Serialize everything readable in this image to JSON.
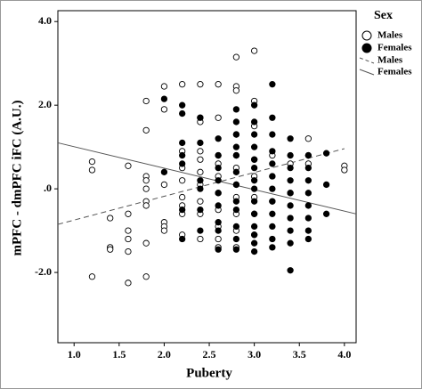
{
  "chart_data": {
    "type": "scatter",
    "x_label": "Puberty",
    "y_label": "mPFC - dmPFC iFC (A.U.)",
    "legend_title": "Sex",
    "legend": "right",
    "xlim": [
      0.82,
      4.13
    ],
    "ylim": [
      -3.68,
      4.26
    ],
    "xticks": [
      {
        "value": 1,
        "label": "1.0"
      },
      {
        "value": 1.5,
        "label": "1.5"
      },
      {
        "value": 2,
        "label": "2.0"
      },
      {
        "value": 2.5,
        "label": "2.5"
      },
      {
        "value": 3,
        "label": "3.0"
      },
      {
        "value": 3.5,
        "label": "3.5"
      },
      {
        "value": 4,
        "label": "4.0"
      }
    ],
    "yticks": [
      {
        "value": -2,
        "label": "-2.0"
      },
      {
        "value": 0,
        "label": ".0"
      },
      {
        "value": 2,
        "label": "2.0"
      },
      {
        "value": 4,
        "label": "4.0"
      }
    ],
    "series": [
      {
        "name": "Males",
        "color": "#000000",
        "marker": "open",
        "x": [
          1.2,
          1.2,
          1.2,
          1.4,
          1.4,
          1.4,
          1.6,
          1.6,
          1.6,
          1.6,
          1.6,
          1.6,
          1.8,
          1.8,
          1.8,
          1.8,
          1.8,
          1.8,
          1.8,
          1.8,
          1.8,
          2.0,
          2.0,
          2.0,
          2.0,
          2.0,
          2.0,
          2.2,
          2.2,
          2.2,
          2.2,
          2.2,
          2.2,
          2.2,
          2.2,
          2.4,
          2.4,
          2.4,
          2.4,
          2.4,
          2.4,
          2.4,
          2.4,
          2.4,
          2.4,
          2.6,
          2.6,
          2.6,
          2.6,
          2.6,
          2.6,
          2.6,
          2.6,
          2.6,
          2.6,
          2.8,
          2.8,
          2.8,
          2.8,
          2.8,
          2.8,
          2.8,
          2.8,
          2.8,
          2.8,
          2.8,
          3.0,
          3.0,
          3.0,
          3.0,
          3.0,
          3.0,
          3.0,
          3.0,
          3.2,
          3.2,
          3.2,
          3.4,
          3.4,
          3.6,
          3.6,
          3.6,
          4.0,
          4.0
        ],
        "values": [
          0.65,
          0.45,
          -2.1,
          -0.7,
          -1.4,
          -1.45,
          0.55,
          -0.6,
          -1.0,
          -1.2,
          -1.5,
          -2.25,
          2.1,
          1.4,
          0.3,
          0.2,
          0.0,
          -0.3,
          -0.4,
          -1.3,
          -2.1,
          2.45,
          1.9,
          0.1,
          -0.8,
          -0.9,
          -1.0,
          2.5,
          0.9,
          0.5,
          0.2,
          -0.2,
          -0.4,
          -0.6,
          -1.1,
          2.5,
          1.7,
          1.6,
          0.9,
          0.7,
          0.4,
          0.1,
          -0.3,
          -0.6,
          -1.2,
          2.5,
          1.7,
          0.8,
          0.6,
          0.3,
          -0.1,
          -0.5,
          -0.9,
          -1.2,
          -1.4,
          3.15,
          2.45,
          2.35,
          1.3,
          0.8,
          0.5,
          0.1,
          -0.2,
          -0.6,
          -1.0,
          -1.4,
          3.3,
          2.1,
          1.5,
          0.7,
          0.3,
          -0.2,
          -0.6,
          -1.1,
          0.8,
          0.3,
          -0.3,
          0.6,
          -0.1,
          1.2,
          0.8,
          0.6,
          0.55,
          0.45
        ]
      },
      {
        "name": "Females",
        "color": "#000000",
        "marker": "filled",
        "x": [
          2.0,
          2.0,
          2.2,
          2.2,
          2.2,
          2.2,
          2.2,
          2.2,
          2.2,
          2.4,
          2.4,
          2.4,
          2.4,
          2.4,
          2.4,
          2.6,
          2.6,
          2.6,
          2.6,
          2.6,
          2.6,
          2.6,
          2.6,
          2.6,
          2.8,
          2.8,
          2.8,
          2.8,
          2.8,
          2.8,
          2.8,
          2.8,
          2.8,
          2.8,
          2.8,
          2.8,
          3.0,
          3.0,
          3.0,
          3.0,
          3.0,
          3.0,
          3.0,
          3.0,
          3.0,
          3.0,
          3.0,
          3.0,
          3.0,
          3.0,
          3.2,
          3.2,
          3.2,
          3.2,
          3.2,
          3.2,
          3.2,
          3.2,
          3.2,
          3.2,
          3.2,
          3.2,
          3.4,
          3.4,
          3.4,
          3.4,
          3.4,
          3.4,
          3.4,
          3.4,
          3.4,
          3.4,
          3.6,
          3.6,
          3.6,
          3.6,
          3.6,
          3.6,
          3.6,
          3.6,
          3.8,
          3.8,
          3.8
        ],
        "values": [
          2.15,
          0.4,
          2.0,
          1.8,
          1.1,
          0.8,
          0.6,
          -0.5,
          -1.2,
          1.7,
          1.1,
          0.2,
          0.0,
          -0.5,
          -1.0,
          1.2,
          0.8,
          0.5,
          0.2,
          -0.1,
          -0.4,
          -0.8,
          -1.0,
          -1.45,
          1.9,
          1.6,
          1.3,
          1.0,
          0.8,
          0.4,
          0.1,
          -0.3,
          -0.5,
          -0.9,
          -1.2,
          -1.45,
          2.0,
          1.6,
          1.3,
          1.0,
          0.7,
          0.5,
          0.2,
          0.0,
          -0.3,
          -0.6,
          -0.9,
          -1.1,
          -1.3,
          -1.5,
          2.5,
          1.7,
          1.3,
          0.9,
          0.6,
          0.3,
          0.0,
          -0.3,
          -0.6,
          -0.9,
          -1.2,
          -1.4,
          1.2,
          0.8,
          0.5,
          0.2,
          -0.1,
          -0.4,
          -0.7,
          -1.0,
          -1.3,
          -1.95,
          0.8,
          0.5,
          0.2,
          -0.1,
          -0.4,
          -0.7,
          -1.0,
          -1.2,
          0.85,
          0.1,
          -0.6
        ]
      }
    ],
    "lines": [
      {
        "name": "Males",
        "color": "#555555",
        "dash": "dashed",
        "x": [
          0.82,
          4.0
        ],
        "values": [
          -0.85,
          0.96
        ]
      },
      {
        "name": "Females",
        "color": "#555555",
        "dash": "solid",
        "x": [
          0.82,
          4.13
        ],
        "values": [
          1.1,
          -0.6
        ]
      }
    ]
  }
}
